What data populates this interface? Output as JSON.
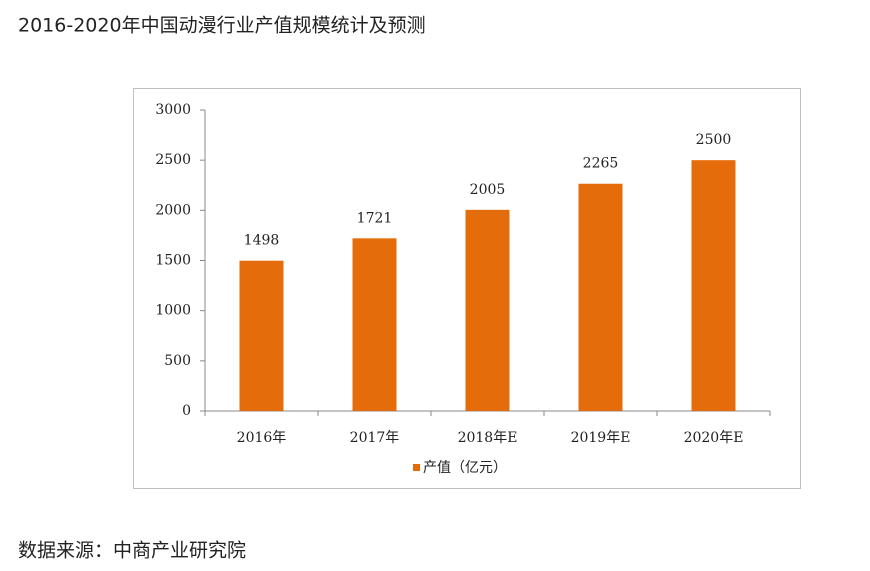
{
  "chart_data": {
    "type": "bar",
    "title": "2016-2020年中国动漫行业产值规模统计及预测",
    "categories": [
      "2016年",
      "2017年",
      "2018年E",
      "2019年E",
      "2020年E"
    ],
    "series": [
      {
        "name": "产值（亿元）",
        "color": "#e46c0a",
        "values": [
          1498,
          1721,
          2005,
          2265,
          2500
        ]
      }
    ],
    "ylim": [
      0,
      3000
    ],
    "yticks": [
      0,
      500,
      1000,
      1500,
      2000,
      2500,
      3000
    ],
    "grid": false,
    "legend": "bottom",
    "source": "数据来源：中商产业研究院"
  }
}
